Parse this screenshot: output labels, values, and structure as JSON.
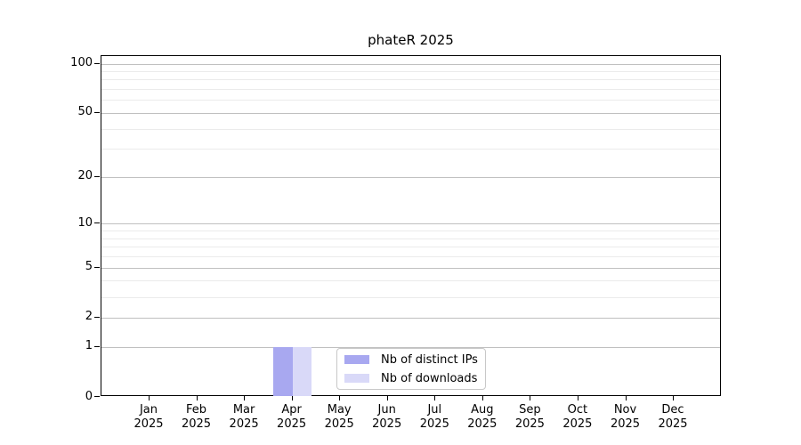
{
  "chart_data": {
    "type": "bar",
    "title": "phateR 2025",
    "categories": [
      "Jan",
      "Feb",
      "Mar",
      "Apr",
      "May",
      "Jun",
      "Jul",
      "Aug",
      "Sep",
      "Oct",
      "Nov",
      "Dec"
    ],
    "category_year": "2025",
    "series": [
      {
        "name": "Nb of distinct IPs",
        "color": "#a8a8f0",
        "values": [
          0,
          0,
          0,
          1,
          0,
          0,
          0,
          0,
          0,
          0,
          0,
          0
        ]
      },
      {
        "name": "Nb of downloads",
        "color": "#d9d9f8",
        "values": [
          0,
          0,
          0,
          1,
          0,
          0,
          0,
          0,
          0,
          0,
          0,
          0
        ]
      }
    ],
    "yaxis": {
      "scale": "log1p",
      "tick_labels": [
        0,
        1,
        2,
        5,
        10,
        20,
        50,
        100
      ],
      "gridline_values": [
        1,
        2,
        3,
        4,
        5,
        6,
        7,
        8,
        9,
        10,
        20,
        30,
        40,
        50,
        60,
        70,
        80,
        90,
        100
      ],
      "max": 100
    },
    "legend_position": "lower center inside",
    "grid": true,
    "colors": {
      "background": "#ffffff",
      "axis": "#000000",
      "major_grid": "#c0c0c0",
      "minor_grid": "#ebebeb",
      "text": "#000000"
    }
  }
}
